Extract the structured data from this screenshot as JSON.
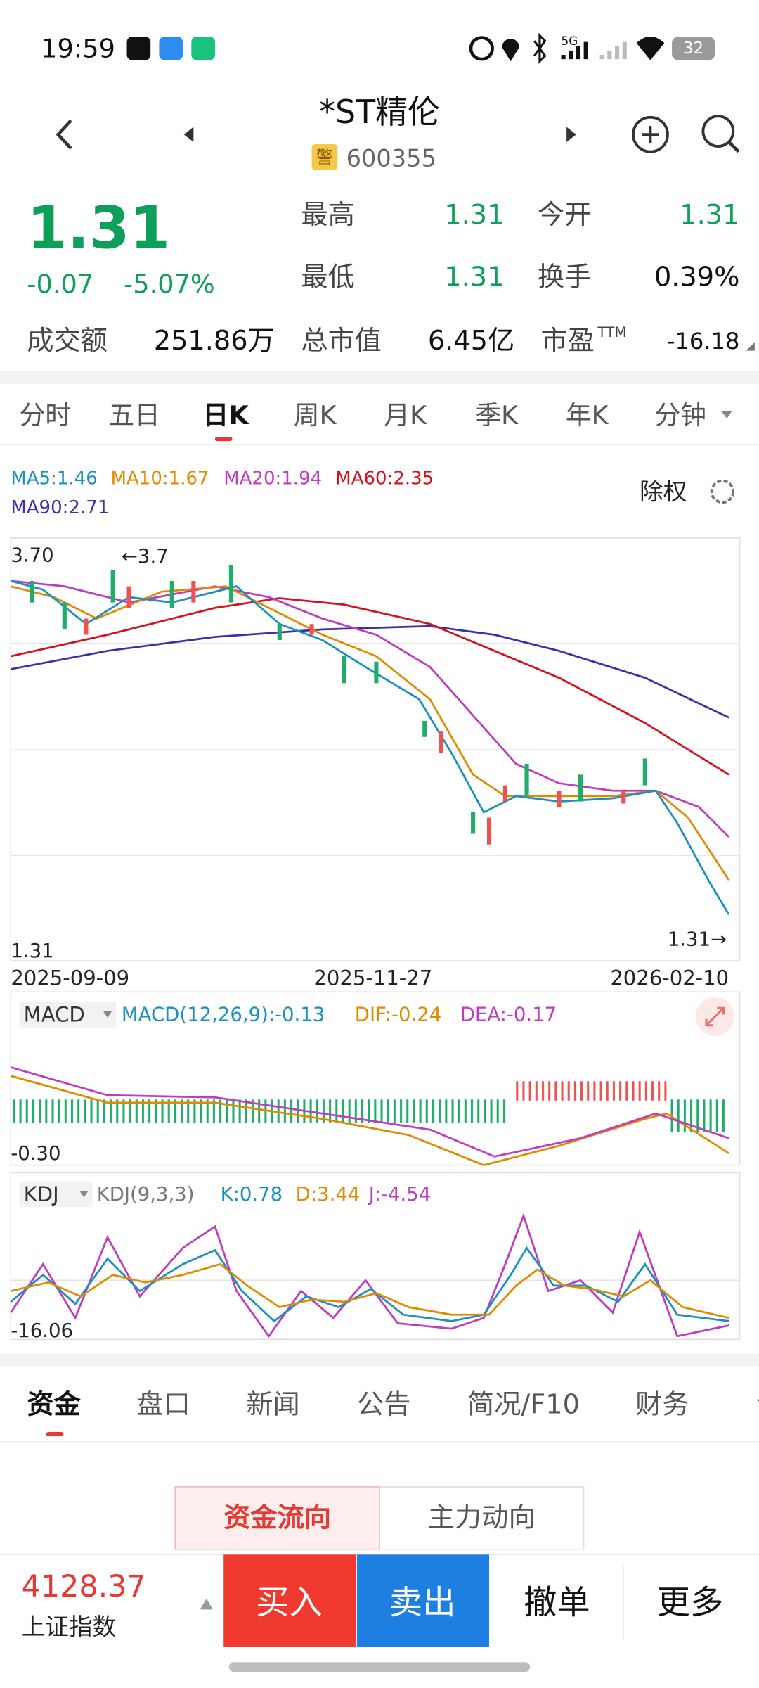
{
  "status_bar": {
    "time": "19:59",
    "network": "5G",
    "battery": "32"
  },
  "header": {
    "title": "*ST精伦",
    "badge": "警",
    "code": "600355"
  },
  "quote": {
    "price": "1.31",
    "change": "-0.07",
    "change_pct": "-5.07%",
    "high_label": "最高",
    "high": "1.31",
    "open_label": "今开",
    "open": "1.31",
    "low_label": "最低",
    "low": "1.31",
    "turnover_label": "换手",
    "turnover": "0.39%",
    "amount_label": "成交额",
    "amount": "251.86万",
    "mktcap_label": "总市值",
    "mktcap": "6.45亿",
    "pe_label": "市盈",
    "pe_sup": "TTM",
    "pe": "-16.18"
  },
  "period_tabs": [
    "分时",
    "五日",
    "日K",
    "周K",
    "月K",
    "季K",
    "年K",
    "分钟"
  ],
  "kline": {
    "ma": [
      "MA5:1.46",
      "MA10:1.67",
      "MA20:1.94",
      "MA60:2.35",
      "MA90:2.71"
    ],
    "adjust": "除权",
    "top_label": "3.70",
    "max_mark": "←3.7",
    "bottom_label": "1.31",
    "min_mark": "1.31→",
    "dates": [
      "2025-09-09",
      "2025-11-27",
      "2026-02-10"
    ]
  },
  "macd": {
    "name": "MACD",
    "params": "MACD(12,26,9):-0.13",
    "dif": "DIF:-0.24",
    "dea": "DEA:-0.17",
    "low_label": "-0.30"
  },
  "kdj": {
    "name": "KDJ",
    "params": "KDJ(9,3,3)",
    "k": "K:0.78",
    "d": "D:3.44",
    "j": "J:-4.54",
    "low_label": "-16.06"
  },
  "info_tabs": [
    "资金",
    "盘口",
    "新闻",
    "公告",
    "简况/F10",
    "财务",
    "诊"
  ],
  "toggle": [
    "资金流向",
    "主力动向"
  ],
  "bottom_bar": {
    "index_value": "4128.37",
    "index_name": "上证指数",
    "buy": "买入",
    "sell": "卖出",
    "cancel": "撤单",
    "more": "更多"
  }
}
